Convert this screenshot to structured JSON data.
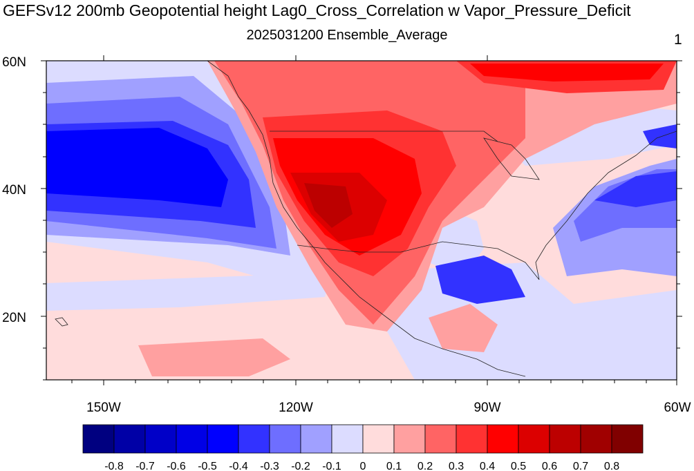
{
  "title": "GEFSv12 200mb Geopotential height Lag0_Cross_Correlation w Vapor_Pressure_Deficit",
  "subtitle": "2025031200 Ensemble_Average",
  "panel_number": "1",
  "map": {
    "lon_range": [
      -160,
      -60
    ],
    "lat_range": [
      10,
      60
    ],
    "lat_labels": [
      "60N",
      "40N",
      "20N"
    ],
    "lon_labels": [
      "150W",
      "120W",
      "90W",
      "60W"
    ]
  },
  "colorbar": {
    "colors": [
      "#000080",
      "#0000a6",
      "#0000c8",
      "#0000e6",
      "#0000ff",
      "#3232ff",
      "#6e6eff",
      "#a0a0ff",
      "#dcdcff",
      "#ffdcdc",
      "#ffa0a0",
      "#ff6464",
      "#ff3232",
      "#ff0000",
      "#dc0000",
      "#bc0000",
      "#a00000",
      "#800000"
    ],
    "labels": [
      "-0.8",
      "-0.7",
      "-0.6",
      "-0.5",
      "-0.4",
      "-0.3",
      "-0.2",
      "-0.1",
      "0",
      "0.1",
      "0.2",
      "0.3",
      "0.4",
      "0.5",
      "0.6",
      "0.7",
      "0.8"
    ]
  }
}
